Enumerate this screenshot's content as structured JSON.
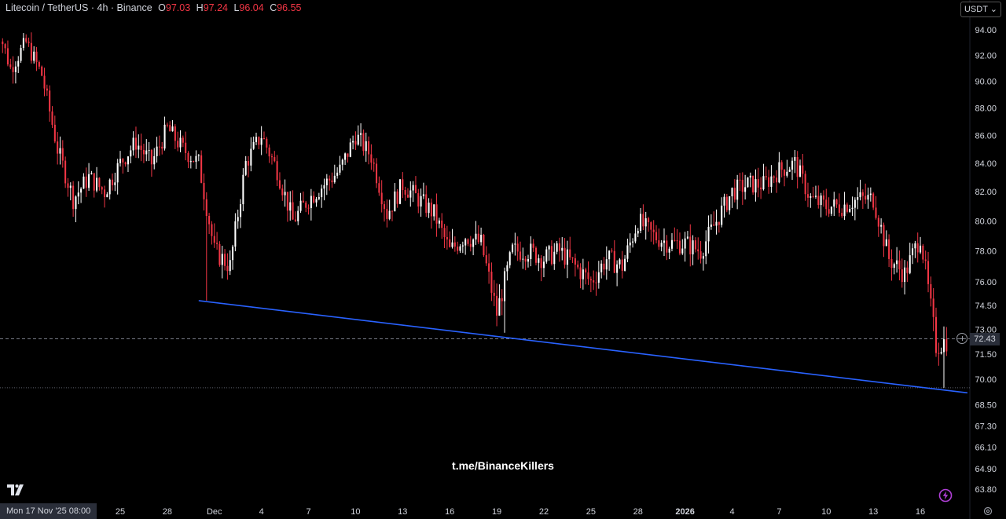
{
  "header": {
    "symbol_text": "Litecoin / TetherUS · 4h · Binance",
    "open_label": "O",
    "open_value": "97.03",
    "high_label": "H",
    "high_value": "97.24",
    "low_label": "L",
    "low_value": "96.04",
    "close_label": "C",
    "close_value": "96.55"
  },
  "currency_button": "USDT ⌄",
  "watermark": "t.me/BinanceKillers",
  "date_badge": "Mon 17 Nov '25   08:00",
  "current_price_badge": "72.43",
  "colors": {
    "up": "#ffffff",
    "down": "#f23645",
    "trendline": "#2962ff",
    "background": "#000000",
    "axis_text": "#d1d4dc"
  },
  "icons": [
    "tradingview-logo-icon",
    "plus-circle-icon",
    "lightning-icon",
    "settings-icon"
  ],
  "chart_data": {
    "type": "candlestick",
    "title": "Litecoin / TetherUS · 4h · Binance",
    "xlabel": "",
    "ylabel": "",
    "y_scale": "log",
    "ylim": [
      63.8,
      96.5
    ],
    "grid": false,
    "x_tick_labels": [
      "25",
      "28",
      "Dec",
      "4",
      "7",
      "10",
      "13",
      "16",
      "19",
      "22",
      "25",
      "28",
      "2026",
      "4",
      "7",
      "10",
      "13",
      "16"
    ],
    "y_tick_labels": [
      "94.00",
      "92.00",
      "90.00",
      "88.00",
      "86.00",
      "84.00",
      "82.00",
      "80.00",
      "78.00",
      "76.00",
      "74.50",
      "73.00",
      "71.50",
      "70.00",
      "68.50",
      "67.30",
      "66.10",
      "64.90",
      "63.80"
    ],
    "current_price": 72.43,
    "horizontal_levels": [
      72.43,
      69.5
    ],
    "anchor_points_close": [
      [
        "2025-11-17",
        95.0
      ],
      [
        "2025-11-18",
        91.0
      ],
      [
        "2025-11-19",
        93.0
      ],
      [
        "2025-11-20",
        90.5
      ],
      [
        "2025-11-21",
        85.0
      ],
      [
        "2025-11-22",
        81.5
      ],
      [
        "2025-11-23",
        83.0
      ],
      [
        "2025-11-24",
        82.0
      ],
      [
        "2025-11-25",
        84.0
      ],
      [
        "2025-11-26",
        85.5
      ],
      [
        "2025-11-27",
        84.0
      ],
      [
        "2025-11-28",
        86.5
      ],
      [
        "2025-11-29",
        85.0
      ],
      [
        "2025-11-30",
        84.0
      ],
      [
        "2025-12-01",
        78.0
      ],
      [
        "2025-12-02",
        77.0
      ],
      [
        "2025-12-03",
        84.0
      ],
      [
        "2025-12-04",
        86.0
      ],
      [
        "2025-12-05",
        83.5
      ],
      [
        "2025-12-06",
        80.0
      ],
      [
        "2025-12-07",
        81.5
      ],
      [
        "2025-12-08",
        82.5
      ],
      [
        "2025-12-09",
        83.5
      ],
      [
        "2025-12-10",
        86.0
      ],
      [
        "2025-12-11",
        84.5
      ],
      [
        "2025-12-12",
        80.5
      ],
      [
        "2025-12-13",
        82.5
      ],
      [
        "2025-12-14",
        81.5
      ],
      [
        "2025-12-15",
        80.5
      ],
      [
        "2025-12-16",
        78.0
      ],
      [
        "2025-12-17",
        79.0
      ],
      [
        "2025-12-18",
        78.5
      ],
      [
        "2025-12-19",
        74.0
      ],
      [
        "2025-12-20",
        78.0
      ],
      [
        "2025-12-21",
        78.0
      ],
      [
        "2025-12-22",
        77.5
      ],
      [
        "2025-12-23",
        78.0
      ],
      [
        "2025-12-24",
        77.0
      ],
      [
        "2025-12-25",
        76.0
      ],
      [
        "2025-12-26",
        77.5
      ],
      [
        "2025-12-27",
        77.0
      ],
      [
        "2025-12-28",
        80.0
      ],
      [
        "2025-12-29",
        79.0
      ],
      [
        "2025-12-30",
        78.5
      ],
      [
        "2025-12-31",
        78.5
      ],
      [
        "2026-01-01",
        78.0
      ],
      [
        "2026-01-02",
        80.0
      ],
      [
        "2026-01-03",
        82.0
      ],
      [
        "2026-01-04",
        82.5
      ],
      [
        "2026-01-05",
        82.5
      ],
      [
        "2026-01-06",
        83.5
      ],
      [
        "2026-01-07",
        84.0
      ],
      [
        "2026-01-08",
        81.5
      ],
      [
        "2026-01-09",
        81.0
      ],
      [
        "2026-01-10",
        81.0
      ],
      [
        "2026-01-11",
        81.5
      ],
      [
        "2026-01-12",
        81.5
      ],
      [
        "2026-01-13",
        77.5
      ],
      [
        "2026-01-14",
        76.5
      ],
      [
        "2026-01-15",
        79.0
      ],
      [
        "2026-01-16",
        72.0
      ],
      [
        "2026-01-17",
        72.5
      ]
    ],
    "trendline": {
      "points": [
        [
          "2025-11-30",
          74.8
        ],
        [
          "2026-01-18",
          69.2
        ]
      ],
      "color": "#2962ff"
    },
    "lows_marked": [
      [
        "2025-11-30",
        74.8
      ],
      [
        "2025-12-19",
        72.8
      ],
      [
        "2026-01-16",
        69.5
      ]
    ]
  }
}
